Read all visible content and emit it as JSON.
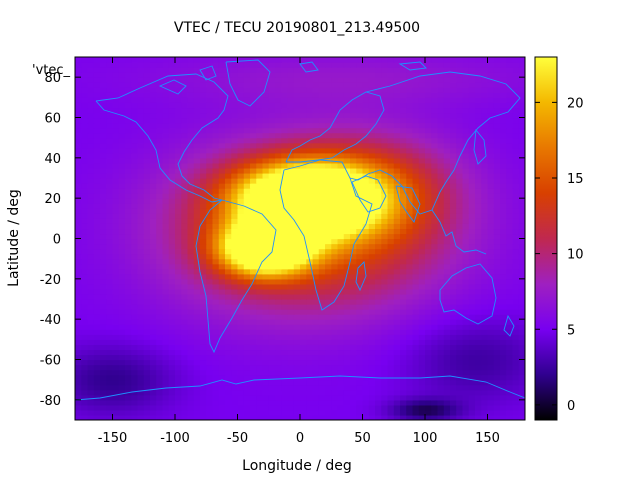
{
  "chart_data": {
    "type": "heatmap",
    "title": "VTEC / TECU 20190801_213.49500",
    "xlabel": "Longitude / deg",
    "ylabel": "Latitude / deg",
    "xlim": [
      -180,
      180
    ],
    "ylim": [
      -90,
      90
    ],
    "xticks": [
      "-150",
      "-100",
      "-50",
      "0",
      "50",
      "100",
      "150"
    ],
    "yticks": [
      "-80",
      "-60",
      "-40",
      "-20",
      "0",
      "20",
      "40",
      "60",
      "80"
    ],
    "legend_label": "'vtec_",
    "colorbar": {
      "range": [
        -1,
        23
      ],
      "ticks": [
        "0",
        "5",
        "10",
        "15",
        "20"
      ],
      "palette": [
        "#000000",
        "#30008f",
        "#7800f0",
        "#9f20c0",
        "#c0284f",
        "#d84000",
        "#e87800",
        "#f4b800",
        "#ffff3c"
      ]
    },
    "field": {
      "background_tecu": 5,
      "features": [
        {
          "name": "equatorial-anomaly-north",
          "lon": 5,
          "lat": 20,
          "peak_tecu": 23,
          "width_lon": 38,
          "width_lat": 12
        },
        {
          "name": "equatorial-anomaly-south",
          "lon": -28,
          "lat": -5,
          "peak_tecu": 20,
          "width_lon": 25,
          "width_lat": 9
        },
        {
          "name": "daylight-band",
          "lon": 5,
          "lat": 5,
          "peak_tecu": 11,
          "width_lon": 75,
          "width_lat": 28
        },
        {
          "name": "eastern-extension",
          "lon": 60,
          "lat": 25,
          "peak_tecu": 5,
          "width_lon": 45,
          "width_lat": 18
        },
        {
          "name": "polar-north",
          "lon": 40,
          "lat": 80,
          "peak_tecu": 2,
          "width_lon": 120,
          "width_lat": 10
        },
        {
          "name": "night-depletion-south-west",
          "lon": -150,
          "lat": -70,
          "peak_tecu": -3,
          "width_lon": 35,
          "width_lat": 12
        },
        {
          "name": "night-depletion-south-east",
          "lon": 140,
          "lat": -60,
          "peak_tecu": -2.5,
          "width_lon": 40,
          "width_lat": 15
        },
        {
          "name": "antarctic-trough",
          "lon": 100,
          "lat": -85,
          "peak_tecu": -4,
          "width_lon": 20,
          "width_lat": 4
        }
      ]
    },
    "coastline_color": "#1e90ff",
    "grid": false
  }
}
